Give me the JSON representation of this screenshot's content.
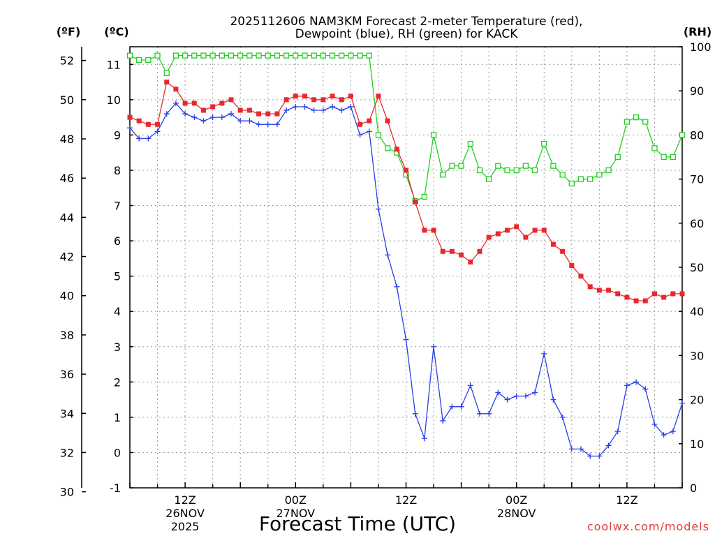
{
  "title": {
    "line1": "2025112606 NAM3KM Forecast 2-meter Temperature (red),",
    "line2": "Dewpoint (blue), RH (green) for KACK"
  },
  "axes": {
    "f_label": "(ºF)",
    "c_label": "(ºC)",
    "rh_label": "(RH)",
    "f_ticks": [
      "30",
      "32",
      "34",
      "36",
      "38",
      "40",
      "42",
      "44",
      "46",
      "48",
      "50",
      "52"
    ],
    "c_ticks": [
      "-1",
      "0",
      "1",
      "2",
      "3",
      "4",
      "5",
      "6",
      "7",
      "8",
      "9",
      "10",
      "11"
    ],
    "rh_ticks": [
      "0",
      "10",
      "20",
      "30",
      "40",
      "50",
      "60",
      "70",
      "80",
      "90",
      "100"
    ],
    "x_ticks": [
      {
        "label": "12Z",
        "sub1": "26NOV",
        "sub2": "2025"
      },
      {
        "label": "00Z",
        "sub1": "27NOV",
        "sub2": ""
      },
      {
        "label": "12Z",
        "sub1": "",
        "sub2": ""
      },
      {
        "label": "00Z",
        "sub1": "28NOV",
        "sub2": ""
      },
      {
        "label": "12Z",
        "sub1": "",
        "sub2": ""
      }
    ],
    "xlabel": "Forecast Time (UTC)"
  },
  "credit": "coolwx.com/models",
  "chart_data": {
    "type": "line",
    "title": "2025112606 NAM3KM Forecast 2-meter Temperature (red), Dewpoint (blue), RH (green) for KACK",
    "xlabel": "Forecast Time (UTC)",
    "x_unit": "forecast hour from 2025-11-26 06Z",
    "x": [
      0,
      1,
      2,
      3,
      4,
      5,
      6,
      7,
      8,
      9,
      10,
      11,
      12,
      13,
      14,
      15,
      16,
      17,
      18,
      19,
      20,
      21,
      22,
      23,
      24,
      25,
      26,
      27,
      28,
      29,
      30,
      31,
      32,
      33,
      34,
      35,
      36,
      37,
      38,
      39,
      40,
      41,
      42,
      43,
      44,
      45,
      46,
      47,
      48,
      49,
      50,
      51,
      52,
      53,
      54,
      55,
      56,
      57,
      58,
      59,
      60
    ],
    "xlim": [
      0,
      60
    ],
    "left_axis": {
      "label": "ºC",
      "ylim": [
        -1,
        11.5
      ]
    },
    "secondary_left_axis": {
      "label": "ºF",
      "ylim": [
        30.2,
        52.7
      ]
    },
    "right_axis": {
      "label": "RH",
      "ylim": [
        0,
        100
      ]
    },
    "series": [
      {
        "name": "2-meter Temperature",
        "color": "#e8282e",
        "axis": "C",
        "values": [
          9.5,
          9.4,
          9.3,
          9.3,
          10.5,
          10.3,
          9.9,
          9.9,
          9.7,
          9.8,
          9.9,
          10.0,
          9.7,
          9.7,
          9.6,
          9.6,
          9.6,
          10.0,
          10.1,
          10.1,
          10.0,
          10.0,
          10.1,
          10.0,
          10.1,
          9.3,
          9.4,
          10.1,
          9.4,
          8.6,
          8.0,
          7.1,
          6.3,
          6.3,
          5.7,
          5.7,
          5.6,
          5.4,
          5.7,
          6.1,
          6.2,
          6.3,
          6.4,
          6.1,
          6.3,
          6.3,
          5.9,
          5.7,
          5.3,
          5.0,
          4.7,
          4.6,
          4.6,
          4.5,
          4.4,
          4.3,
          4.3,
          4.5,
          4.4,
          4.5,
          4.5
        ]
      },
      {
        "name": "Dewpoint",
        "color": "#2a3fe8",
        "axis": "C",
        "values": [
          9.2,
          8.9,
          8.9,
          9.1,
          9.6,
          9.9,
          9.6,
          9.5,
          9.4,
          9.5,
          9.5,
          9.6,
          9.4,
          9.4,
          9.3,
          9.3,
          9.3,
          9.7,
          9.8,
          9.8,
          9.7,
          9.7,
          9.8,
          9.7,
          9.8,
          9.0,
          9.1,
          6.9,
          5.6,
          4.7,
          3.2,
          1.1,
          0.4,
          3.0,
          0.9,
          1.3,
          1.3,
          1.9,
          1.1,
          1.1,
          1.7,
          1.5,
          1.6,
          1.6,
          1.7,
          2.8,
          1.5,
          1.0,
          0.1,
          0.1,
          -0.1,
          -0.1,
          0.2,
          0.6,
          1.9,
          2.0,
          1.8,
          0.8,
          0.5,
          0.6,
          1.4
        ]
      },
      {
        "name": "RH",
        "color": "#20d020",
        "axis": "RH",
        "values": [
          98,
          97,
          97,
          98,
          94,
          98,
          98,
          98,
          98,
          98,
          98,
          98,
          98,
          98,
          98,
          98,
          98,
          98,
          98,
          98,
          98,
          98,
          98,
          98,
          98,
          98,
          98,
          80,
          77,
          76,
          71,
          65,
          66,
          80,
          71,
          73,
          73,
          78,
          72,
          70,
          73,
          72,
          72,
          73,
          72,
          78,
          73,
          71,
          69,
          70,
          70,
          71,
          72,
          75,
          83,
          84,
          83,
          77,
          75,
          75,
          80
        ]
      }
    ]
  }
}
